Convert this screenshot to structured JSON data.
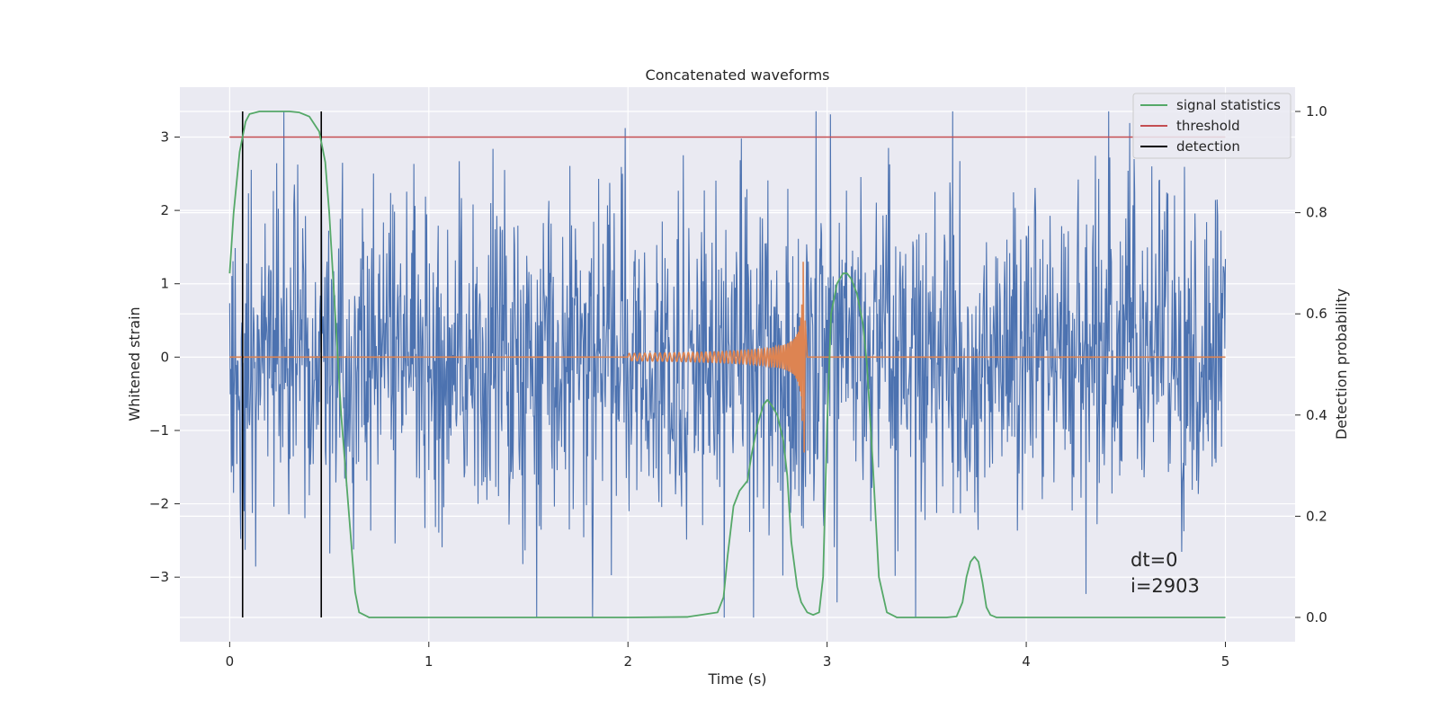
{
  "chart_data": {
    "type": "line",
    "title": "Concatenated waveforms",
    "xlabel": "Time (s)",
    "ylabel": "Whitened strain",
    "ylabel_right": "Detection probability",
    "xlim": [
      -0.25,
      5.35
    ],
    "ylim_left": [
      -3.88,
      3.68
    ],
    "ylim_right": [
      -0.048,
      1.048
    ],
    "x_ticks": [
      "0",
      "1",
      "2",
      "3",
      "4",
      "5"
    ],
    "y_ticks_left": [
      "−3",
      "−2",
      "−1",
      "0",
      "1",
      "2",
      "3"
    ],
    "y_ticks_right": [
      "0.0",
      "0.2",
      "0.4",
      "0.6",
      "0.8",
      "1.0"
    ],
    "grid": true,
    "legend_position": "top-right",
    "legend": [
      "signal statistics",
      "threshold",
      "detection"
    ],
    "colors": {
      "background": "#eaeaf2",
      "grid": "#ffffff",
      "strain": "#4c72b0",
      "template": "#dd8452",
      "statistics": "#55a868",
      "threshold": "#c44e52",
      "detection": "#000000"
    },
    "series": [
      {
        "name": "signal statistics",
        "axis": "right",
        "x": [
          0.0,
          0.02,
          0.05,
          0.08,
          0.1,
          0.15,
          0.2,
          0.3,
          0.35,
          0.4,
          0.45,
          0.48,
          0.5,
          0.53,
          0.56,
          0.6,
          0.63,
          0.65,
          0.7,
          1.0,
          1.5,
          2.0,
          2.3,
          2.45,
          2.48,
          2.5,
          2.53,
          2.56,
          2.6,
          2.62,
          2.65,
          2.68,
          2.7,
          2.72,
          2.75,
          2.78,
          2.8,
          2.82,
          2.85,
          2.87,
          2.9,
          2.93,
          2.96,
          2.98,
          3.0,
          3.02,
          3.05,
          3.08,
          3.1,
          3.12,
          3.15,
          3.18,
          3.2,
          3.23,
          3.26,
          3.3,
          3.35,
          3.5,
          3.6,
          3.65,
          3.68,
          3.7,
          3.72,
          3.74,
          3.76,
          3.78,
          3.8,
          3.82,
          3.85,
          4.0,
          4.5,
          5.0
        ],
        "y": [
          0.68,
          0.8,
          0.92,
          0.98,
          0.995,
          1.0,
          1.0,
          1.0,
          0.998,
          0.99,
          0.96,
          0.9,
          0.8,
          0.6,
          0.4,
          0.2,
          0.05,
          0.01,
          0.0,
          0.0,
          0.0,
          0.0,
          0.001,
          0.01,
          0.04,
          0.12,
          0.22,
          0.25,
          0.27,
          0.32,
          0.38,
          0.42,
          0.43,
          0.42,
          0.4,
          0.35,
          0.28,
          0.15,
          0.06,
          0.03,
          0.01,
          0.005,
          0.01,
          0.08,
          0.38,
          0.6,
          0.66,
          0.68,
          0.68,
          0.67,
          0.64,
          0.58,
          0.5,
          0.3,
          0.08,
          0.01,
          0.0,
          0.0,
          0.0,
          0.002,
          0.03,
          0.08,
          0.11,
          0.12,
          0.11,
          0.07,
          0.02,
          0.005,
          0.0,
          0.0,
          0.0,
          0.0
        ]
      },
      {
        "name": "threshold",
        "axis": "left",
        "x": [
          0,
          5
        ],
        "y": [
          3.0,
          3.0
        ]
      },
      {
        "name": "detection",
        "axis": "right",
        "x_positions": [
          0.065,
          0.46
        ],
        "y": [
          0.0,
          1.0
        ]
      },
      {
        "axis": "left",
        "duration": 5.0,
        "range_min": -3.55,
        "range_max": 3.35
      },
      {
        "axis": "left",
        "start": 2.0,
        "merger": 2.88,
        "peak": 1.3,
        "peak_min": -1.3
      }
    ],
    "annotations": [
      "dt=0",
      "i=2903"
    ]
  }
}
